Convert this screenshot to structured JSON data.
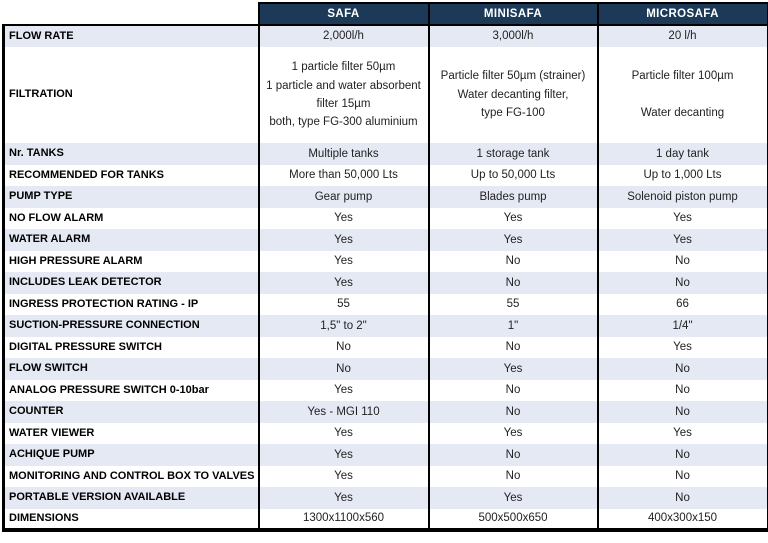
{
  "colors": {
    "header_bg": "#1c3a57",
    "header_text": "#ffffff",
    "shaded_row_bg": "#e4e9f4",
    "border": "#000000",
    "label_text": "#000000",
    "value_text": "#222222"
  },
  "table": {
    "columns": [
      "SAFA",
      "MINISAFA",
      "MICROSAFA"
    ],
    "rows": [
      {
        "label": "FLOW RATE",
        "values": [
          "2,000l/h",
          "3,000l/h",
          "20 l/h"
        ]
      },
      {
        "label": "FILTRATION",
        "values": [
          "1 particle filter 50µm\n1 particle and water absorbent\nfilter 15µm\nboth, type FG-300 aluminium",
          "Particle filter 50µm (strainer)\nWater decanting filter,\ntype FG-100",
          "Particle filter 100µm\n\nWater decanting"
        ]
      },
      {
        "label": "Nr. TANKS",
        "values": [
          "Multiple tanks",
          "1 storage tank",
          "1 day tank"
        ]
      },
      {
        "label": "RECOMMENDED FOR TANKS",
        "values": [
          "More than 50,000 Lts",
          "Up to 50,000 Lts",
          "Up to 1,000 Lts"
        ]
      },
      {
        "label": "PUMP TYPE",
        "values": [
          "Gear pump",
          "Blades pump",
          "Solenoid piston pump"
        ]
      },
      {
        "label": "NO FLOW ALARM",
        "values": [
          "Yes",
          "Yes",
          "Yes"
        ]
      },
      {
        "label": "WATER ALARM",
        "values": [
          "Yes",
          "Yes",
          "Yes"
        ]
      },
      {
        "label": "HIGH PRESSURE ALARM",
        "values": [
          "Yes",
          "No",
          "No"
        ]
      },
      {
        "label": "INCLUDES LEAK DETECTOR",
        "values": [
          "Yes",
          "No",
          "No"
        ]
      },
      {
        "label": "INGRESS PROTECTION RATING - IP",
        "values": [
          "55",
          "55",
          "66"
        ]
      },
      {
        "label": "SUCTION-PRESSURE CONNECTION",
        "values": [
          "1,5\" to 2\"",
          "1\"",
          "1/4\""
        ]
      },
      {
        "label": "DIGITAL PRESSURE SWITCH",
        "values": [
          "No",
          "No",
          "Yes"
        ]
      },
      {
        "label": "FLOW SWITCH",
        "values": [
          "No",
          "Yes",
          "No"
        ]
      },
      {
        "label": "ANALOG PRESSURE SWITCH 0-10bar",
        "values": [
          "Yes",
          "No",
          "No"
        ]
      },
      {
        "label": "COUNTER",
        "values": [
          "Yes - MGI 110",
          "No",
          "No"
        ]
      },
      {
        "label": "WATER VIEWER",
        "values": [
          "Yes",
          "Yes",
          "Yes"
        ]
      },
      {
        "label": "ACHIQUE PUMP",
        "values": [
          "Yes",
          "No",
          "No"
        ]
      },
      {
        "label": "MONITORING AND CONTROL BOX TO VALVES",
        "values": [
          "Yes",
          "No",
          "No"
        ]
      },
      {
        "label": "PORTABLE VERSION AVAILABLE",
        "values": [
          "Yes",
          "Yes",
          "No"
        ]
      },
      {
        "label": "DIMENSIONS",
        "values": [
          "1300x1100x560",
          "500x500x650",
          "400x300x150"
        ]
      }
    ]
  }
}
